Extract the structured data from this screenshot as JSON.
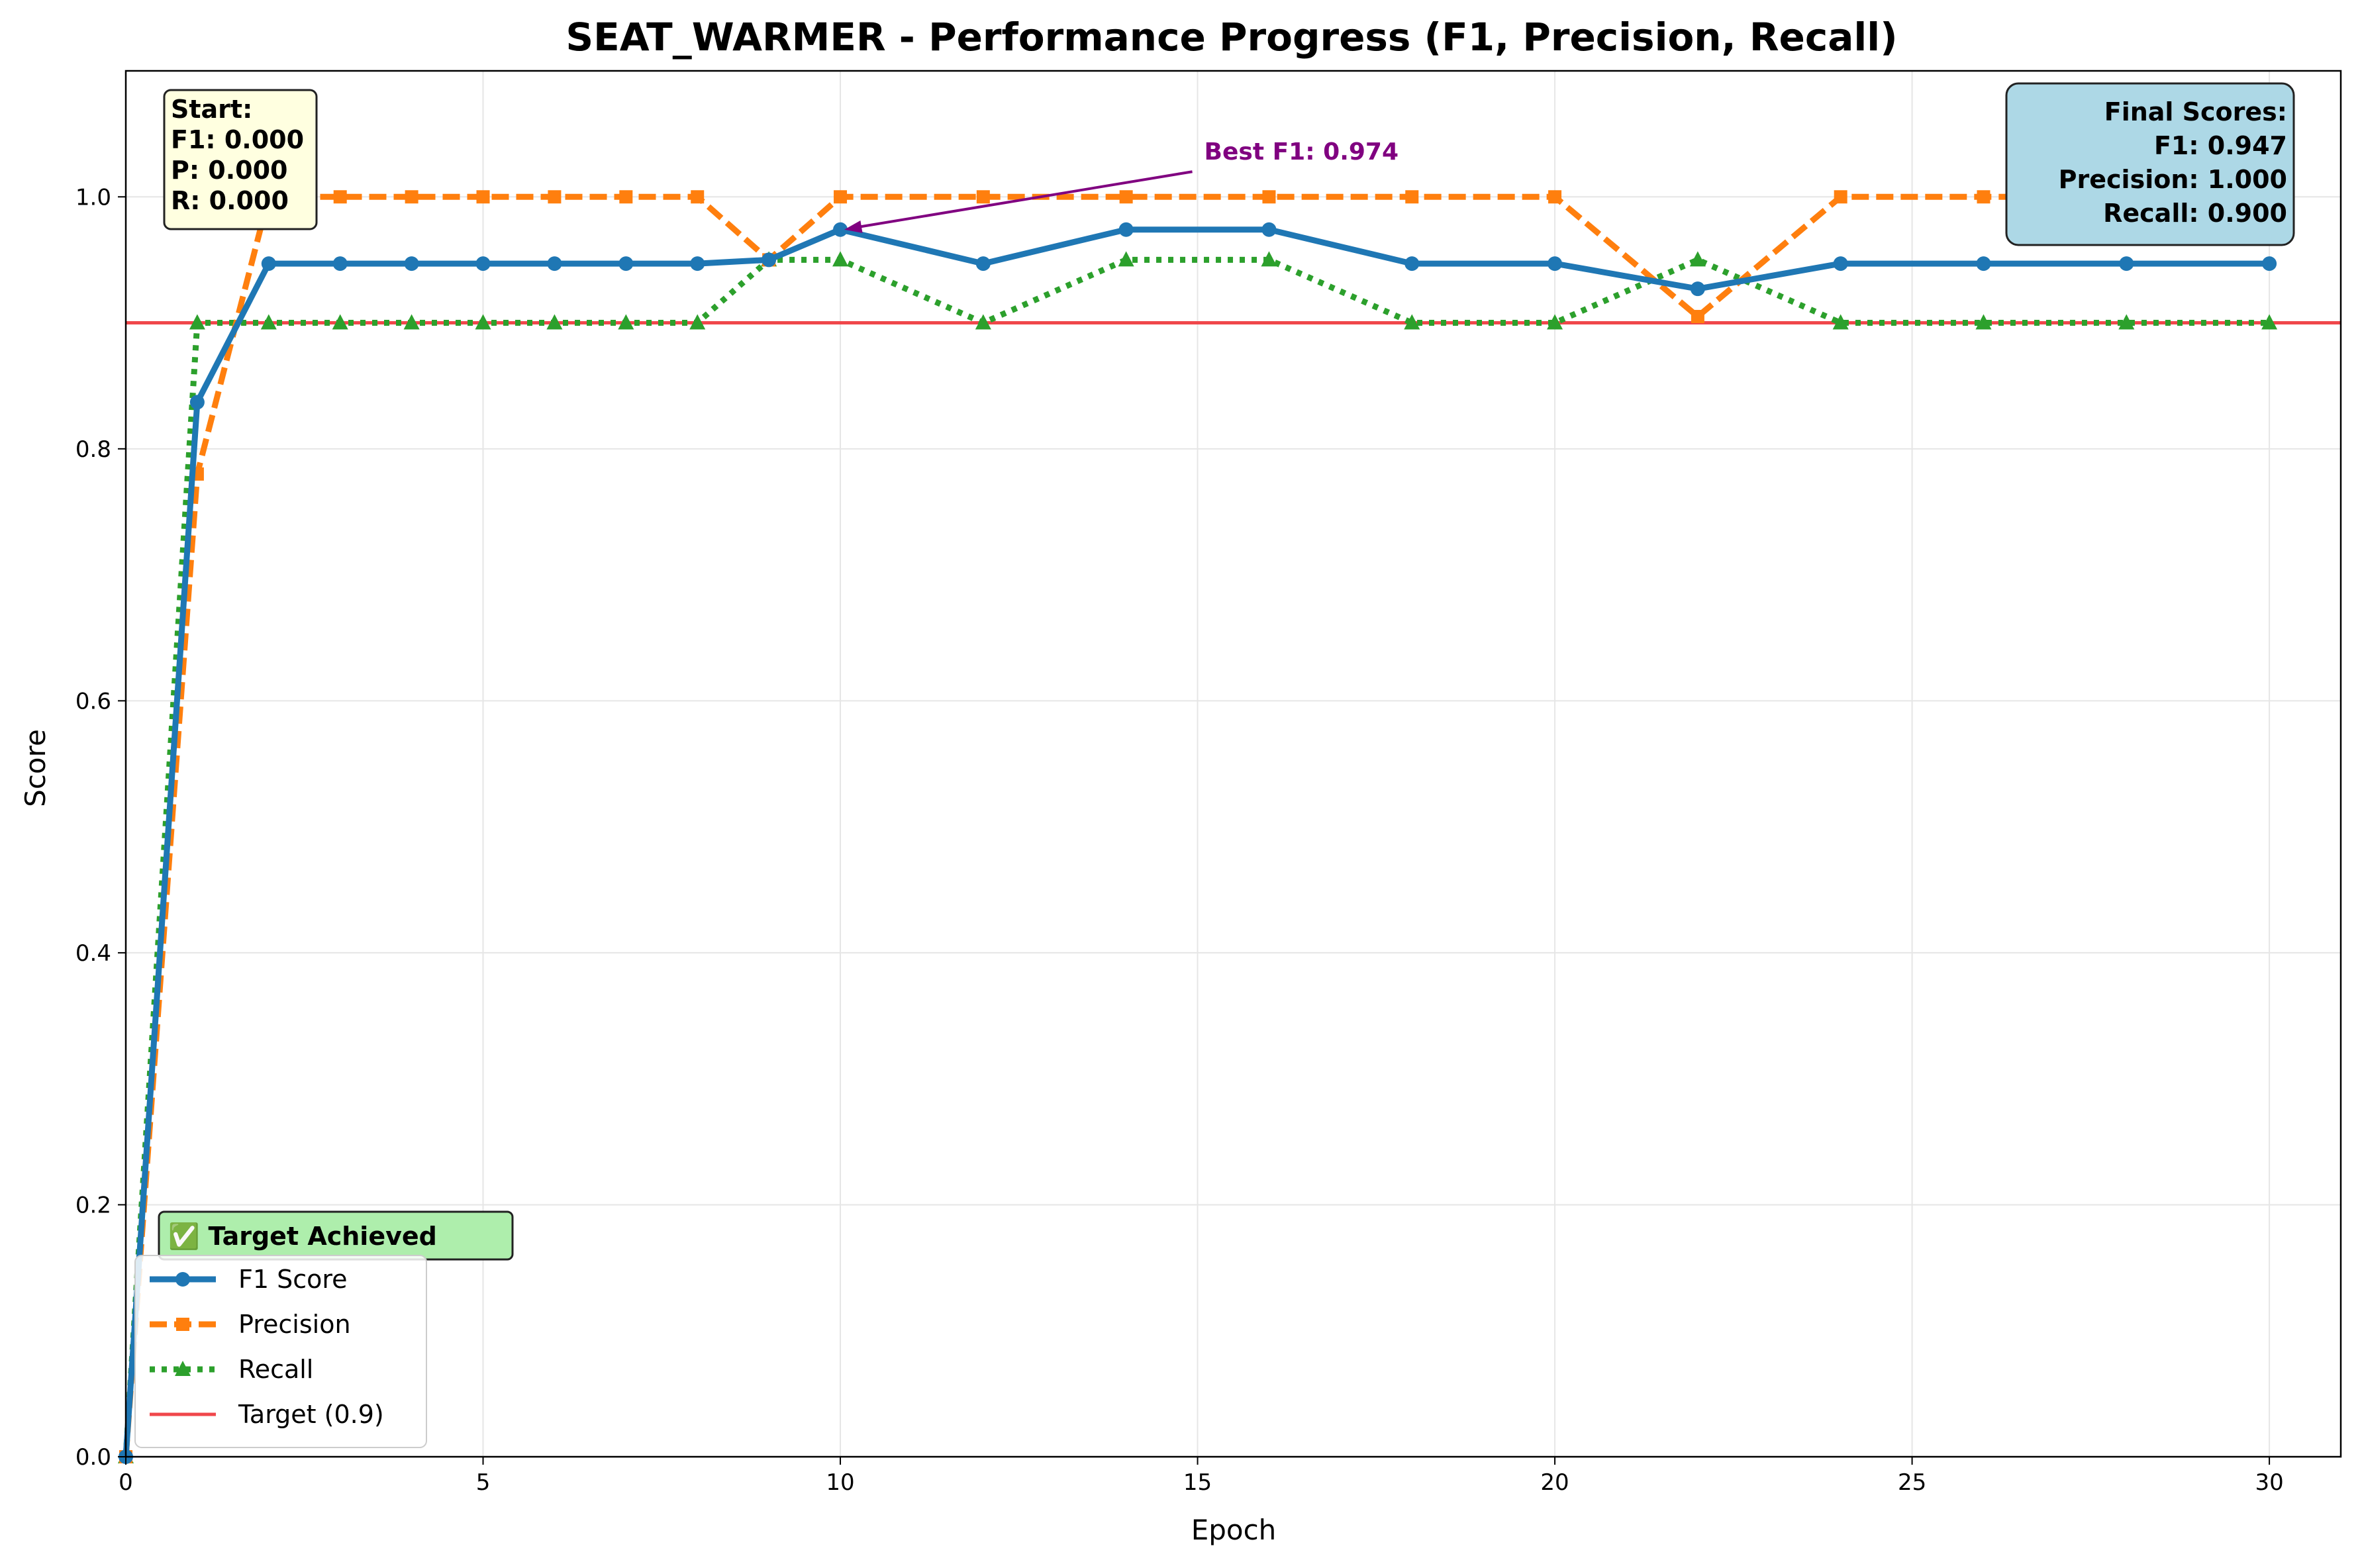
{
  "chart_data": {
    "type": "line",
    "title": "SEAT_WARMER - Performance Progress (F1, Precision, Recall)",
    "xlabel": "Epoch",
    "ylabel": "Score",
    "xlim": [
      0,
      31
    ],
    "ylim": [
      0,
      1.1
    ],
    "x_ticks": [
      "0",
      "5",
      "10",
      "15",
      "20",
      "25",
      "30"
    ],
    "y_ticks": [
      "0.0",
      "0.2",
      "0.4",
      "0.6",
      "0.8",
      "1.0"
    ],
    "grid": true,
    "legend_position": "lower-left",
    "x": [
      0,
      1,
      2,
      3,
      4,
      5,
      6,
      7,
      8,
      9,
      10,
      12,
      14,
      16,
      18,
      20,
      22,
      24,
      26,
      28,
      30
    ],
    "series": [
      {
        "name": "F1 Score",
        "color": "#1f77b4",
        "style": "solid",
        "marker": "circle",
        "values": [
          0.0,
          0.837,
          0.947,
          0.947,
          0.947,
          0.947,
          0.947,
          0.947,
          0.947,
          0.95,
          0.974,
          0.947,
          0.974,
          0.974,
          0.947,
          0.947,
          0.927,
          0.947,
          0.947,
          0.947,
          0.947
        ]
      },
      {
        "name": "Precision",
        "color": "#ff7f0e",
        "style": "dashed",
        "marker": "square",
        "values": [
          0.0,
          0.78,
          1.0,
          1.0,
          1.0,
          1.0,
          1.0,
          1.0,
          1.0,
          0.95,
          1.0,
          1.0,
          1.0,
          1.0,
          1.0,
          1.0,
          0.905,
          1.0,
          1.0,
          1.0,
          1.0
        ]
      },
      {
        "name": "Recall",
        "color": "#2ca02c",
        "style": "dotted",
        "marker": "triangle",
        "values": [
          0.0,
          0.9,
          0.9,
          0.9,
          0.9,
          0.9,
          0.9,
          0.9,
          0.9,
          0.95,
          0.95,
          0.9,
          0.95,
          0.95,
          0.9,
          0.9,
          0.95,
          0.9,
          0.9,
          0.9,
          0.9
        ]
      }
    ],
    "target": {
      "name": "Target (0.9)",
      "value": 0.9,
      "color": "#f0474b"
    },
    "annotation": {
      "text": "Best F1: 0.974",
      "point": [
        10,
        0.974
      ],
      "text_at": [
        15,
        1.02
      ],
      "color": "#800080"
    },
    "start_box": {
      "lines": [
        "Start:",
        "F1: 0.000",
        "P: 0.000",
        "R: 0.000"
      ],
      "bg": "#ffffe0"
    },
    "final_box": {
      "lines": [
        "Final Scores:",
        "F1: 0.947",
        "Precision: 1.000",
        "Recall: 0.900"
      ],
      "bg": "#add8e6"
    },
    "target_box": {
      "text": "✅ Target Achieved",
      "bg": "#aeeeac"
    }
  }
}
